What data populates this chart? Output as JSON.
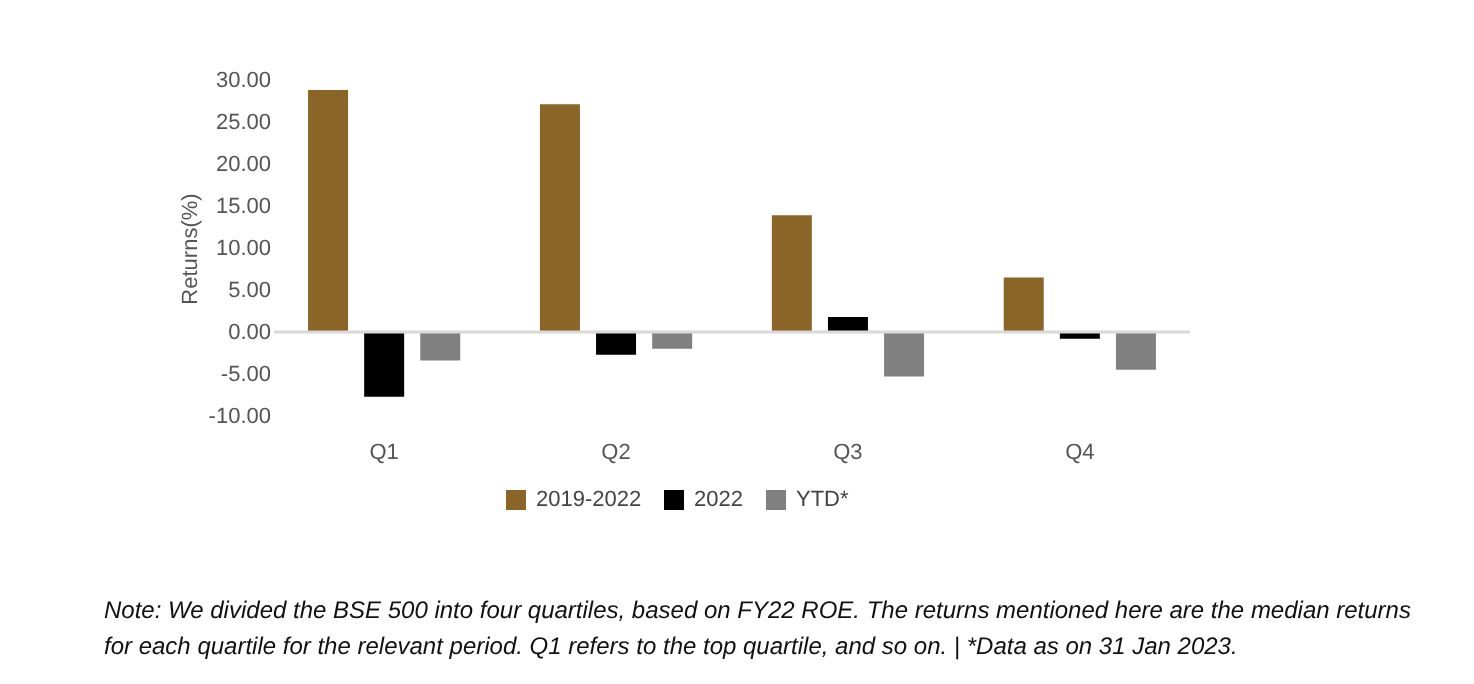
{
  "chart_data": {
    "type": "bar",
    "ylabel": "Returns(%)",
    "categories": [
      "Q1",
      "Q2",
      "Q3",
      "Q4"
    ],
    "series": [
      {
        "name": "2019-2022",
        "color": "#8b6428",
        "values": [
          28.8,
          27.1,
          13.9,
          6.5
        ]
      },
      {
        "name": "2022",
        "color": "#000000",
        "values": [
          -7.7,
          -2.7,
          1.8,
          -0.8
        ]
      },
      {
        "name": "YTD*",
        "color": "#808080",
        "values": [
          -3.4,
          -2.0,
          -5.3,
          -4.5
        ]
      }
    ],
    "ylim": [
      -10,
      30
    ],
    "yticks": [
      {
        "value": -10,
        "label": "-10.00"
      },
      {
        "value": -5,
        "label": "-5.00"
      },
      {
        "value": 0,
        "label": "0.00"
      },
      {
        "value": 5,
        "label": "5.00"
      },
      {
        "value": 10,
        "label": "10.00"
      },
      {
        "value": 15,
        "label": "15.00"
      },
      {
        "value": 20,
        "label": "20.00"
      },
      {
        "value": 25,
        "label": "25.00"
      },
      {
        "value": 30,
        "label": "30.00"
      }
    ],
    "ref_lines": [
      {
        "axis": "y",
        "value": 0,
        "color": "#d9d9d9"
      }
    ],
    "grid": false,
    "legend": "bottom",
    "annotations": [
      "Note: We divided the BSE 500 into four quartiles, based on FY22 ROE. The returns mentioned here are the median returns for each quartile for the relevant period. Q1 refers to the top quartile, and so on. | *Data as on 31 Jan 2023."
    ]
  }
}
